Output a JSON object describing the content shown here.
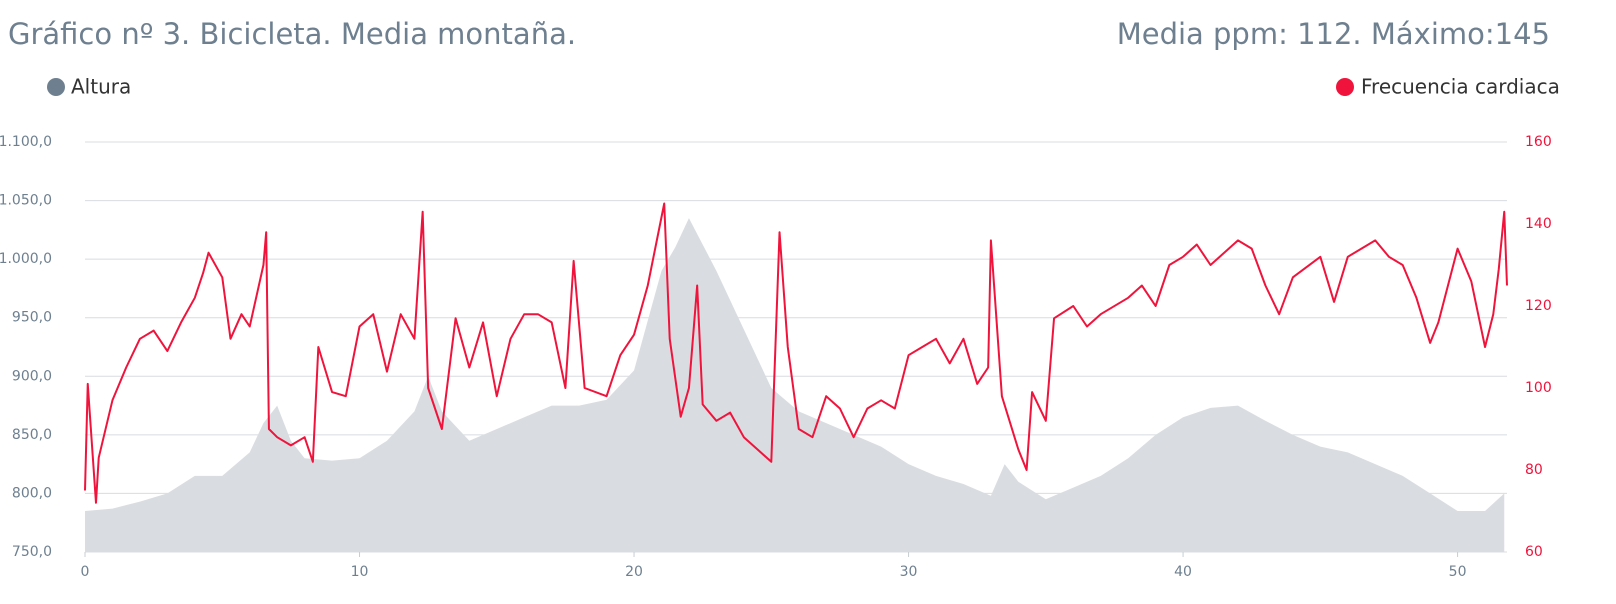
{
  "chart_data": {
    "type": "line",
    "title": "Gráfico nº 3. Bicicleta. Media montaña.",
    "subtitle": "Media ppm: 112.  Máximo:145",
    "xlim": [
      0,
      51.8
    ],
    "xticks": [
      0,
      10,
      20,
      30,
      40,
      50
    ],
    "ylim": [
      750,
      1100
    ],
    "yticks": [
      {
        "value": 750,
        "label": "750,0"
      },
      {
        "value": 800,
        "label": "800,0"
      },
      {
        "value": 850,
        "label": "850,0"
      },
      {
        "value": 900,
        "label": "900,0"
      },
      {
        "value": 950,
        "label": "950,0"
      },
      {
        "value": 1000,
        "label": "1.000,0"
      },
      {
        "value": 1050,
        "label": "1.050,0"
      },
      {
        "value": 1100,
        "label": "1.100,0"
      }
    ],
    "y2lim": [
      60,
      160
    ],
    "y2ticks": [
      60,
      80,
      100,
      120,
      140,
      160
    ],
    "grid": true,
    "series": [
      {
        "name": "Altura",
        "color": "#6e8090",
        "fill": "#d9dde1",
        "kind": "area",
        "x": [
          0,
          1,
          2,
          3,
          4,
          5,
          6,
          6.5,
          7,
          7.5,
          8,
          9,
          10,
          11,
          12,
          12.5,
          13,
          14,
          15,
          16,
          17,
          18,
          19,
          20,
          21,
          21.5,
          22,
          23,
          24,
          25,
          26,
          27,
          28,
          29,
          30,
          31,
          32,
          33,
          33.5,
          34,
          35,
          36,
          37,
          38,
          39,
          40,
          41,
          42,
          43,
          44,
          45,
          46,
          47,
          48,
          49,
          50,
          51,
          51.7
        ],
        "values": [
          785,
          787,
          793,
          800,
          815,
          815,
          835,
          860,
          875,
          845,
          830,
          828,
          830,
          845,
          870,
          900,
          870,
          845,
          855,
          865,
          875,
          875,
          880,
          905,
          990,
          1010,
          1035,
          990,
          940,
          890,
          870,
          860,
          850,
          840,
          825,
          815,
          808,
          798,
          825,
          810,
          795,
          805,
          815,
          830,
          850,
          865,
          873,
          875,
          862,
          850,
          840,
          835,
          825,
          815,
          800,
          785,
          785,
          800
        ]
      },
      {
        "name": "Frecuencia cardiaca",
        "color": "#f0143c",
        "axis": "y2",
        "kind": "line",
        "x": [
          0,
          0.1,
          0.4,
          0.5,
          1,
          1.5,
          2,
          2.5,
          3,
          3.5,
          4,
          4.3,
          4.5,
          5,
          5.3,
          5.7,
          6,
          6.5,
          6.6,
          6.7,
          7,
          7.5,
          8,
          8.3,
          8.5,
          9,
          9.5,
          10,
          10.5,
          11,
          11.5,
          12,
          12.3,
          12.5,
          13,
          13.5,
          14,
          14.5,
          15,
          15.5,
          16,
          16.5,
          17,
          17.5,
          17.8,
          18.2,
          19,
          19.5,
          20,
          20.5,
          20.8,
          21.1,
          21.3,
          21.7,
          22,
          22.3,
          22.5,
          23,
          23.5,
          24,
          24.5,
          25,
          25.3,
          25.6,
          26,
          26.5,
          27,
          27.5,
          28,
          28.5,
          29,
          29.5,
          30,
          30.5,
          31,
          31.5,
          32,
          32.5,
          32.9,
          33,
          33.4,
          34,
          34.3,
          34.5,
          35,
          35.3,
          36,
          36.5,
          37,
          38,
          38.5,
          39,
          39.5,
          40,
          40.5,
          41,
          42,
          42.5,
          43,
          43.5,
          44,
          45,
          45.5,
          46,
          47,
          47.5,
          48,
          48.5,
          49,
          49.3,
          50,
          50.5,
          51,
          51.3,
          51.5,
          51.7,
          51.8
        ],
        "values": [
          75,
          101,
          72,
          83,
          97,
          105,
          112,
          114,
          109,
          116,
          122,
          128,
          133,
          127,
          112,
          118,
          115,
          130,
          138,
          90,
          88,
          86,
          88,
          82,
          110,
          99,
          98,
          115,
          118,
          104,
          118,
          112,
          143,
          100,
          90,
          117,
          105,
          116,
          98,
          112,
          118,
          118,
          116,
          100,
          131,
          100,
          98,
          108,
          113,
          125,
          135,
          145,
          112,
          93,
          100,
          125,
          96,
          92,
          94,
          88,
          85,
          82,
          138,
          110,
          90,
          88,
          98,
          95,
          88,
          95,
          97,
          95,
          108,
          110,
          112,
          106,
          112,
          101,
          105,
          136,
          98,
          85,
          80,
          99,
          92,
          117,
          120,
          115,
          118,
          122,
          125,
          120,
          130,
          132,
          135,
          130,
          136,
          134,
          125,
          118,
          127,
          132,
          121,
          132,
          136,
          132,
          130,
          122,
          111,
          116,
          134,
          126,
          110,
          118,
          129,
          143,
          125
        ]
      }
    ]
  }
}
